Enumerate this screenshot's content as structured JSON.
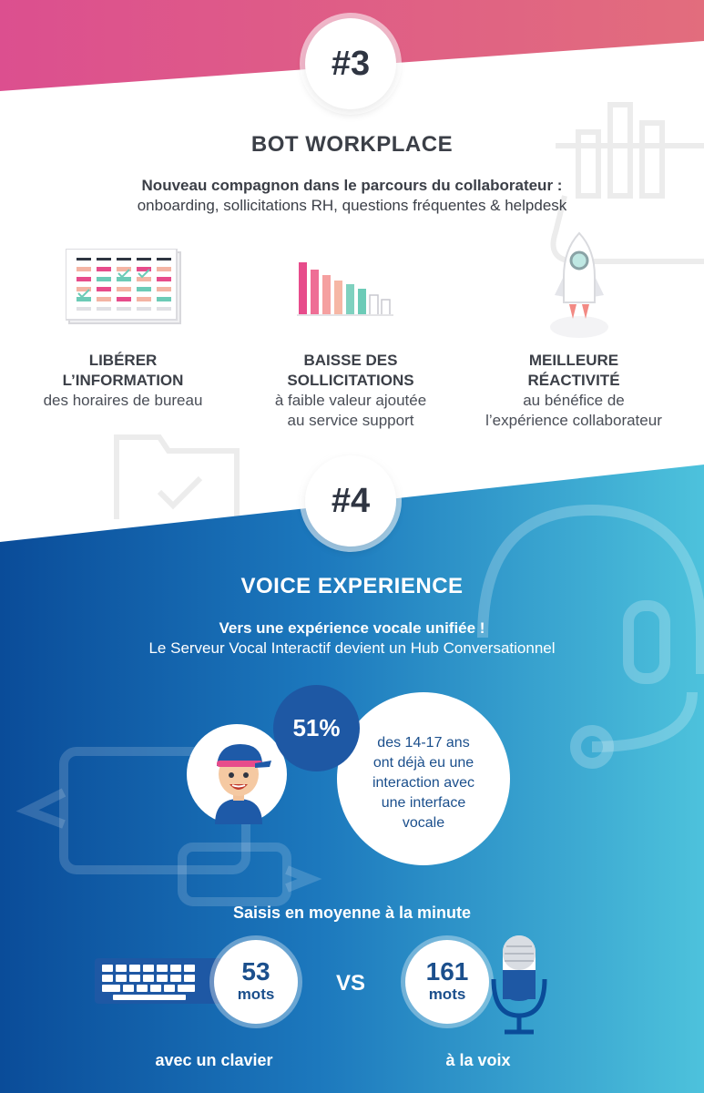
{
  "section3": {
    "number": "#3",
    "title": "BOT WORKPLACE",
    "subtitle_line1": "Nouveau compagnon dans le parcours du collaborateur :",
    "subtitle_line2": "onboarding, sollicitations RH, questions fréquentes & helpdesk",
    "features": [
      {
        "title_line1": "LIBÉRER",
        "title_line2": "L’INFORMATION",
        "text_line1": "des horaires de bureau",
        "text_line2": ""
      },
      {
        "title_line1": "BAISSE DES",
        "title_line2": "SOLLICITATIONS",
        "text_line1": "à faible valeur ajoutée",
        "text_line2": "au service support"
      },
      {
        "title_line1": "MEILLEURE",
        "title_line2": "RÉACTIVITÉ",
        "text_line1": "au bénéfice de",
        "text_line2": "l’expérience collaborateur"
      }
    ]
  },
  "section4": {
    "number": "#4",
    "title": "VOICE EXPERIENCE",
    "subtitle_line1": "Vers une expérience vocale unifiée !",
    "subtitle_line2": "Le Serveur Vocal Interactif devient un Hub Conversationnel",
    "stat_percent": "51%",
    "stat_text_lines": [
      "des 14-17 ans",
      "ont déjà eu une",
      "interaction avec",
      "une interface",
      "vocale"
    ],
    "typing_title": "Saisis en moyenne à la minute",
    "keyboard_value": "53",
    "keyboard_unit": "mots",
    "vs_label": "VS",
    "voice_value": "161",
    "voice_unit": "mots",
    "keyboard_caption": "avec un clavier",
    "voice_caption": "à la voix"
  },
  "icons": [
    "calendar-icon",
    "bar-chart-icon",
    "rocket-icon",
    "teen-avatar-icon",
    "keyboard-icon",
    "microphone-icon",
    "headset-icon",
    "chat-bubble-icon",
    "folder-icon"
  ],
  "colors": {
    "pink": "#e0578f",
    "blue_dark": "#0b4f9c",
    "blue_light": "#4cc0dc",
    "text_dark": "#3b3f47"
  }
}
